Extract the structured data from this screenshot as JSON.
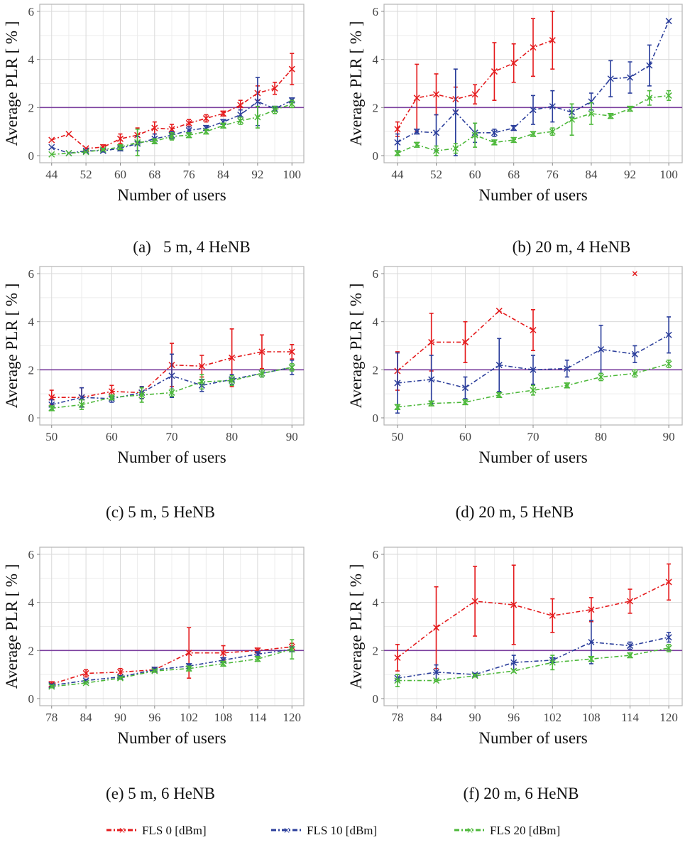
{
  "figure": {
    "legend": [
      {
        "label": "FLS 0 [dBm]",
        "color": "#e41a1c"
      },
      {
        "label": "FLS 10 [dBm]",
        "color": "#2b3e9b"
      },
      {
        "label": "FLS 20 [dBm]",
        "color": "#4db83a"
      }
    ],
    "threshold_color": "#7b3f9e"
  },
  "chart_data": [
    {
      "type": "line",
      "caption": "(a)   5 m, 4 HeNB",
      "xlabel": "Number of users",
      "ylabel": "Average  PLR  [ % ]",
      "xlim": [
        44,
        100
      ],
      "ylim": [
        0,
        6
      ],
      "xticks": [
        44,
        52,
        60,
        68,
        76,
        84,
        92,
        100
      ],
      "yticks": [
        0,
        2,
        4,
        6
      ],
      "threshold": 2,
      "series": [
        {
          "name": "FLS 0 [dBm]",
          "x": [
            44,
            48,
            52,
            56,
            60,
            64,
            68,
            72,
            76,
            80,
            84,
            88,
            92,
            96,
            100
          ],
          "y": [
            0.65,
            0.9,
            0.3,
            0.35,
            0.7,
            0.85,
            1.15,
            1.1,
            1.35,
            1.55,
            1.75,
            2.1,
            2.6,
            2.8,
            3.6
          ],
          "err": [
            0,
            0,
            0,
            0.1,
            0.2,
            0.3,
            0.25,
            0.2,
            0.15,
            0.15,
            0.1,
            0.2,
            0.3,
            0.25,
            0.65
          ]
        },
        {
          "name": "FLS 10 [dBm]",
          "x": [
            44,
            48,
            52,
            56,
            60,
            64,
            68,
            72,
            76,
            80,
            84,
            88,
            92,
            96,
            100
          ],
          "y": [
            0.35,
            0.1,
            0.2,
            0.2,
            0.3,
            0.5,
            0.7,
            0.85,
            1.05,
            1.15,
            1.4,
            1.7,
            2.25,
            1.95,
            2.3
          ],
          "err": [
            0,
            0,
            0,
            0.05,
            0.1,
            0.3,
            0.2,
            0.15,
            0.15,
            0.1,
            0.1,
            0.2,
            1.0,
            0.1,
            0.1
          ]
        },
        {
          "name": "FLS 20 [dBm]",
          "x": [
            44,
            48,
            52,
            56,
            60,
            64,
            68,
            72,
            76,
            80,
            84,
            88,
            92,
            96,
            100
          ],
          "y": [
            0.05,
            0.1,
            0.15,
            0.25,
            0.35,
            0.55,
            0.6,
            0.8,
            0.85,
            1.0,
            1.25,
            1.45,
            1.6,
            1.9,
            2.15
          ],
          "err": [
            0,
            0,
            0,
            0.05,
            0.1,
            0.55,
            0.1,
            0.15,
            0.1,
            0.1,
            0.1,
            0.15,
            0.45,
            0.15,
            0.15
          ]
        }
      ]
    },
    {
      "type": "line",
      "caption": "(b) 20 m, 4 HeNB",
      "xlabel": "Number of users",
      "ylabel": "Average  PLR  [ % ]",
      "xlim": [
        44,
        100
      ],
      "ylim": [
        0,
        6
      ],
      "xticks": [
        44,
        52,
        60,
        68,
        76,
        84,
        92,
        100
      ],
      "yticks": [
        0,
        2,
        4,
        6
      ],
      "threshold": 2,
      "series": [
        {
          "name": "FLS 0 [dBm]",
          "x": [
            44,
            48,
            52,
            56,
            60,
            64,
            68,
            72,
            76
          ],
          "y": [
            1.1,
            2.4,
            2.55,
            2.35,
            2.55,
            3.5,
            3.85,
            4.5,
            4.8
          ],
          "err": [
            0.3,
            1.4,
            0.85,
            0.5,
            0.4,
            1.2,
            0.8,
            1.2,
            1.2
          ]
        },
        {
          "name": "FLS 10 [dBm]",
          "x": [
            44,
            48,
            52,
            56,
            60,
            64,
            68,
            72,
            76,
            80,
            84,
            88,
            92,
            96,
            100
          ],
          "y": [
            0.55,
            1.0,
            0.95,
            1.8,
            0.95,
            0.95,
            1.15,
            1.9,
            2.05,
            1.8,
            2.25,
            3.2,
            3.25,
            3.75,
            5.6
          ],
          "err": [
            0.35,
            0.1,
            0.75,
            1.8,
            0.4,
            0.15,
            0.1,
            0.6,
            0.65,
            0.2,
            0.35,
            0.75,
            0.65,
            0.85,
            0
          ]
        },
        {
          "name": "FLS 20 [dBm]",
          "x": [
            44,
            48,
            52,
            56,
            60,
            64,
            68,
            72,
            76,
            80,
            84,
            88,
            92,
            96,
            100
          ],
          "y": [
            0.1,
            0.45,
            0.2,
            0.3,
            0.85,
            0.55,
            0.65,
            0.9,
            1.0,
            1.5,
            1.75,
            1.65,
            1.95,
            2.4,
            2.5
          ],
          "err": [
            0.1,
            0.1,
            0.2,
            0.2,
            0.5,
            0.1,
            0.1,
            0.1,
            0.15,
            0.65,
            0.45,
            0.1,
            0.1,
            0.3,
            0.2
          ]
        }
      ]
    },
    {
      "type": "line",
      "caption": "(c) 5 m, 5 HeNB",
      "xlabel": "Number of users",
      "ylabel": "Average  PLR  [ % ]",
      "xlim": [
        50,
        90
      ],
      "ylim": [
        0,
        6
      ],
      "xticks": [
        50,
        60,
        70,
        80,
        90
      ],
      "yticks": [
        0,
        2,
        4,
        6
      ],
      "threshold": 2,
      "series": [
        {
          "name": "FLS 0 [dBm]",
          "x": [
            50,
            55,
            60,
            65,
            70,
            75,
            80,
            85,
            90
          ],
          "y": [
            0.85,
            0.85,
            1.1,
            1.05,
            2.2,
            2.15,
            2.5,
            2.75,
            2.75
          ],
          "err": [
            0.3,
            0.4,
            0.25,
            0.25,
            0.9,
            0.45,
            1.2,
            0.7,
            0.3
          ]
        },
        {
          "name": "FLS 10 [dBm]",
          "x": [
            50,
            55,
            60,
            65,
            70,
            75,
            80,
            85,
            90
          ],
          "y": [
            0.55,
            0.85,
            0.8,
            1.05,
            1.75,
            1.35,
            1.6,
            1.85,
            2.1
          ],
          "err": [
            0.2,
            0.4,
            0.15,
            0.25,
            0.9,
            0.25,
            0.2,
            0.15,
            0.3
          ]
        },
        {
          "name": "FLS 20 [dBm]",
          "x": [
            50,
            55,
            60,
            65,
            70,
            75,
            80,
            85,
            90
          ],
          "y": [
            0.4,
            0.55,
            0.85,
            0.95,
            1.05,
            1.5,
            1.55,
            1.85,
            2.1
          ],
          "err": [
            0.1,
            0.2,
            0.1,
            0.3,
            0.15,
            0.3,
            0.2,
            0.15,
            0.15
          ]
        }
      ]
    },
    {
      "type": "line",
      "caption": "(d) 20 m, 5 HeNB",
      "xlabel": "Number of users",
      "ylabel": "Average  PLR  [ % ]",
      "xlim": [
        50,
        90
      ],
      "ylim": [
        0,
        6
      ],
      "xticks": [
        50,
        60,
        70,
        80,
        90
      ],
      "yticks": [
        0,
        2,
        4,
        6
      ],
      "threshold": 2,
      "series": [
        {
          "name": "FLS 0 [dBm]",
          "x": [
            50,
            55,
            60,
            65,
            70
          ],
          "y": [
            1.95,
            3.15,
            3.15,
            4.45,
            3.65
          ],
          "err": [
            0.8,
            1.2,
            0.85,
            0,
            0.85
          ],
          "outlier": {
            "x": 85,
            "y": 6.0
          }
        },
        {
          "name": "FLS 10 [dBm]",
          "x": [
            50,
            55,
            60,
            65,
            70,
            75,
            80,
            85,
            90
          ],
          "y": [
            1.45,
            1.6,
            1.25,
            2.2,
            2.0,
            2.05,
            2.85,
            2.65,
            3.45
          ],
          "err": [
            1.25,
            1.0,
            0.45,
            1.1,
            0.6,
            0.35,
            1.0,
            0.35,
            0.75
          ]
        },
        {
          "name": "FLS 20 [dBm]",
          "x": [
            50,
            55,
            60,
            65,
            70,
            75,
            80,
            85,
            90
          ],
          "y": [
            0.45,
            0.6,
            0.65,
            0.95,
            1.15,
            1.35,
            1.7,
            1.85,
            2.25
          ],
          "err": [
            0.1,
            0.1,
            0.1,
            0.1,
            0.2,
            0.1,
            0.15,
            0.15,
            0.15
          ]
        }
      ]
    },
    {
      "type": "line",
      "caption": "(e) 5 m, 6 HeNB",
      "xlabel": "Number of users",
      "ylabel": "Average  PLR  [ % ]",
      "xlim": [
        78,
        120
      ],
      "ylim": [
        0,
        6
      ],
      "xticks": [
        78,
        84,
        90,
        96,
        102,
        108,
        114,
        120
      ],
      "yticks": [
        0,
        2,
        4,
        6
      ],
      "threshold": 2,
      "series": [
        {
          "name": "FLS 0 [dBm]",
          "x": [
            78,
            84,
            90,
            96,
            102,
            108,
            114,
            120
          ],
          "y": [
            0.6,
            1.05,
            1.1,
            1.2,
            1.9,
            1.9,
            2.0,
            2.15
          ],
          "err": [
            0.1,
            0.15,
            0.15,
            0.1,
            1.05,
            0.3,
            0.1,
            0.15
          ]
        },
        {
          "name": "FLS 10 [dBm]",
          "x": [
            78,
            84,
            90,
            96,
            102,
            108,
            114,
            120
          ],
          "y": [
            0.55,
            0.75,
            0.9,
            1.2,
            1.35,
            1.6,
            1.85,
            2.05
          ],
          "err": [
            0.05,
            0.05,
            0.05,
            0.1,
            0.1,
            0.1,
            0.1,
            0.1
          ]
        },
        {
          "name": "FLS 20 [dBm]",
          "x": [
            78,
            84,
            90,
            96,
            102,
            108,
            114,
            120
          ],
          "y": [
            0.5,
            0.65,
            0.85,
            1.15,
            1.25,
            1.45,
            1.65,
            2.05
          ],
          "err": [
            0.05,
            0.05,
            0.05,
            0.05,
            0.1,
            0.1,
            0.1,
            0.4
          ]
        }
      ]
    },
    {
      "type": "line",
      "caption": "(f) 20 m, 6 HeNB",
      "xlabel": "Number of users",
      "ylabel": "Average  PLR  [ % ]",
      "xlim": [
        78,
        120
      ],
      "ylim": [
        0,
        6
      ],
      "xticks": [
        78,
        84,
        90,
        96,
        102,
        108,
        114,
        120
      ],
      "yticks": [
        0,
        2,
        4,
        6
      ],
      "threshold": 2,
      "series": [
        {
          "name": "FLS 0 [dBm]",
          "x": [
            78,
            84,
            90,
            96,
            102,
            108,
            114,
            120
          ],
          "y": [
            1.7,
            2.95,
            4.05,
            3.9,
            3.45,
            3.7,
            4.05,
            4.85
          ],
          "err": [
            0.55,
            1.7,
            1.45,
            1.65,
            0.7,
            0.5,
            0.5,
            0.75
          ]
        },
        {
          "name": "FLS 10 [dBm]",
          "x": [
            78,
            84,
            90,
            96,
            102,
            108,
            114,
            120
          ],
          "y": [
            0.85,
            1.1,
            1.0,
            1.5,
            1.6,
            2.35,
            2.2,
            2.55
          ],
          "err": [
            0.15,
            0.3,
            0.05,
            0.3,
            0.1,
            0.9,
            0.15,
            0.2
          ]
        },
        {
          "name": "FLS 20 [dBm]",
          "x": [
            78,
            84,
            90,
            96,
            102,
            108,
            114,
            120
          ],
          "y": [
            0.75,
            0.75,
            0.95,
            1.15,
            1.5,
            1.65,
            1.8,
            2.1
          ],
          "err": [
            0.25,
            0.05,
            0.05,
            0.05,
            0.3,
            0.1,
            0.1,
            0.15
          ]
        }
      ]
    }
  ]
}
